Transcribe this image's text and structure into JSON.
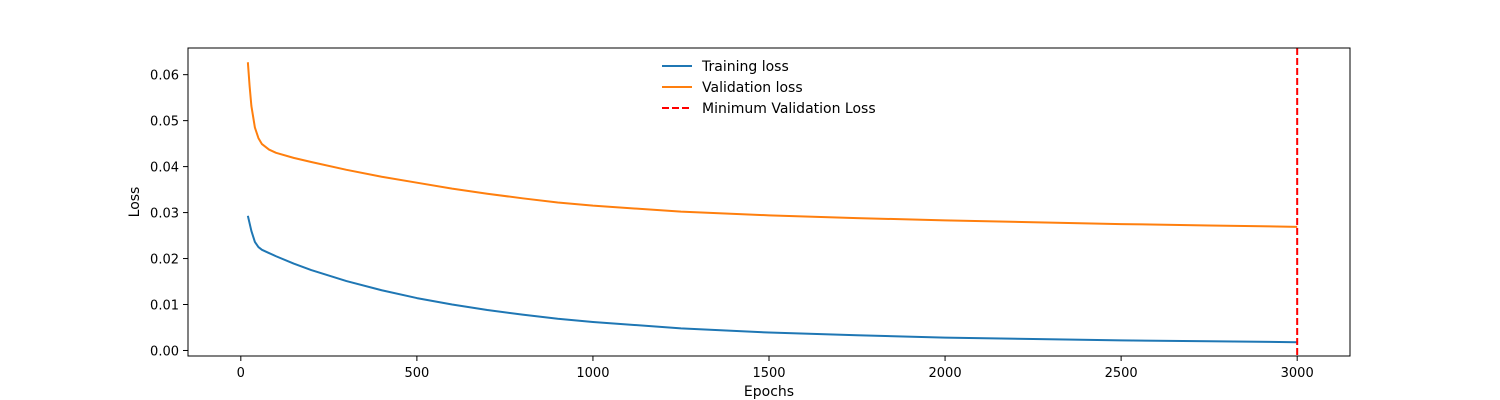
{
  "chart_data": {
    "type": "line",
    "title": "",
    "xlabel": "Epochs",
    "ylabel": "Loss",
    "xlim": [
      -150,
      3150
    ],
    "ylim": [
      -0.0012,
      0.0658
    ],
    "xticks": [
      0,
      500,
      1000,
      1500,
      2000,
      2500,
      3000
    ],
    "xtick_labels": [
      "0",
      "500",
      "1000",
      "1500",
      "2000",
      "2500",
      "3000"
    ],
    "yticks": [
      0.0,
      0.01,
      0.02,
      0.03,
      0.04,
      0.05,
      0.06
    ],
    "ytick_labels": [
      "0.00",
      "0.01",
      "0.02",
      "0.03",
      "0.04",
      "0.05",
      "0.06"
    ],
    "grid": false,
    "legend_position": "upper center",
    "series": [
      {
        "name": "Training loss",
        "color": "#1f77b4",
        "style": "solid",
        "x": [
          20,
          30,
          40,
          50,
          60,
          80,
          100,
          150,
          200,
          300,
          400,
          500,
          600,
          700,
          800,
          900,
          1000,
          1250,
          1500,
          1750,
          2000,
          2250,
          2500,
          2750,
          3000
        ],
        "y": [
          0.0293,
          0.026,
          0.0236,
          0.0225,
          0.0219,
          0.0212,
          0.0205,
          0.0189,
          0.0175,
          0.0151,
          0.0131,
          0.0114,
          0.01,
          0.0088,
          0.0078,
          0.0069,
          0.0062,
          0.0048,
          0.0039,
          0.0033,
          0.0028,
          0.0025,
          0.0022,
          0.002,
          0.0018
        ]
      },
      {
        "name": "Validation loss",
        "color": "#ff7f0e",
        "style": "solid",
        "x": [
          20,
          25,
          30,
          40,
          50,
          60,
          80,
          100,
          150,
          200,
          300,
          400,
          500,
          600,
          700,
          800,
          900,
          1000,
          1250,
          1500,
          1750,
          2000,
          2250,
          2500,
          2750,
          3000
        ],
        "y": [
          0.0627,
          0.0575,
          0.0532,
          0.0485,
          0.0462,
          0.0449,
          0.0437,
          0.043,
          0.0419,
          0.041,
          0.0393,
          0.0378,
          0.0365,
          0.0352,
          0.0341,
          0.0331,
          0.0322,
          0.0315,
          0.0302,
          0.0294,
          0.0288,
          0.0283,
          0.0279,
          0.0275,
          0.0272,
          0.0269
        ]
      }
    ],
    "vline": {
      "name": "Minimum Validation Loss",
      "x": 3000,
      "color": "#ff0000",
      "style": "dashed"
    }
  }
}
